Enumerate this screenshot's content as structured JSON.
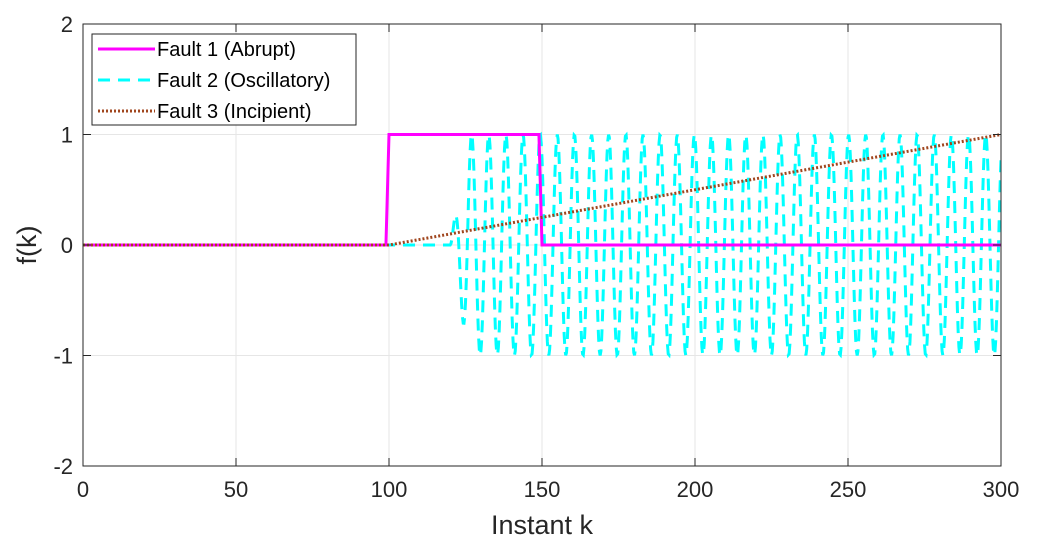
{
  "chart_data": {
    "type": "line",
    "title": "",
    "xlabel": "Instant k",
    "ylabel": "f(k)",
    "xlim": [
      0,
      300
    ],
    "ylim": [
      -2,
      2
    ],
    "xticks": [
      0,
      50,
      100,
      150,
      200,
      250,
      300
    ],
    "yticks": [
      -2,
      -1,
      0,
      1,
      2
    ],
    "grid": true,
    "legend_position": "top-left",
    "series": [
      {
        "name": "Fault 1 (Abrupt)",
        "color": "#ff00ff",
        "style": "solid",
        "x": [
          0,
          99,
          100,
          149,
          150,
          300
        ],
        "y": [
          0,
          0,
          1,
          1,
          0,
          0
        ]
      },
      {
        "name": "Fault 2 (Oscillatory)",
        "color": "#00ffff",
        "style": "dashed",
        "onset": 120,
        "end": 300,
        "amplitude": 1,
        "period": 5.6
      },
      {
        "name": "Fault 3 (Incipient)",
        "color": "#a0461e",
        "style": "dotted",
        "x": [
          0,
          100,
          300
        ],
        "y": [
          0,
          0,
          1
        ]
      }
    ]
  }
}
